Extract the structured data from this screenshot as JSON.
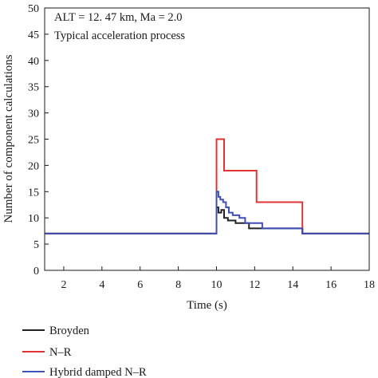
{
  "chart_data": {
    "type": "line",
    "annotations": [
      "ALT = 12. 47 km, Ma = 2.0",
      "Typical acceleration process"
    ],
    "xlabel": "Time (s)",
    "ylabel": "Number of component calculations",
    "xlim": [
      1,
      18
    ],
    "ylim": [
      0,
      50
    ],
    "xticks": [
      2,
      4,
      6,
      8,
      10,
      12,
      14,
      16,
      18
    ],
    "yticks": [
      0,
      5,
      10,
      15,
      20,
      25,
      30,
      35,
      40,
      45,
      50
    ],
    "grid": false,
    "legend_position": "bottom-left, below plot",
    "series": [
      {
        "name": "Broyden",
        "color": "#222222",
        "step": true,
        "x": [
          1,
          10,
          10,
          10.1,
          10.1,
          10.25,
          10.25,
          10.4,
          10.4,
          10.6,
          10.6,
          11.0,
          11.0,
          11.7,
          11.7,
          12.6,
          12.6,
          14.5,
          14.5,
          18
        ],
        "y": [
          7,
          7,
          12,
          12,
          11,
          11,
          11.5,
          11.5,
          10,
          10,
          9.5,
          9.5,
          9,
          9,
          8,
          8,
          8,
          8,
          7,
          7
        ]
      },
      {
        "name": "N–R",
        "color": "#e03434",
        "step": true,
        "x": [
          1,
          10,
          10,
          10.4,
          10.4,
          12.1,
          12.1,
          14.5,
          14.5,
          18
        ],
        "y": [
          7,
          7,
          25,
          25,
          19,
          19,
          13,
          13,
          7,
          7
        ]
      },
      {
        "name": "Hybrid damped N–R",
        "color": "#3f4fb8",
        "step": true,
        "x": [
          1,
          10,
          10,
          10.1,
          10.1,
          10.2,
          10.2,
          10.35,
          10.35,
          10.5,
          10.5,
          10.65,
          10.65,
          10.85,
          10.85,
          11.2,
          11.2,
          11.5,
          11.5,
          12.4,
          12.4,
          14.5,
          14.5,
          18
        ],
        "y": [
          7,
          7,
          15,
          15,
          14,
          14,
          13.5,
          13.5,
          13,
          13,
          12,
          12,
          11,
          11,
          10.5,
          10.5,
          10,
          10,
          9,
          9,
          8,
          8,
          7,
          7
        ]
      }
    ]
  }
}
